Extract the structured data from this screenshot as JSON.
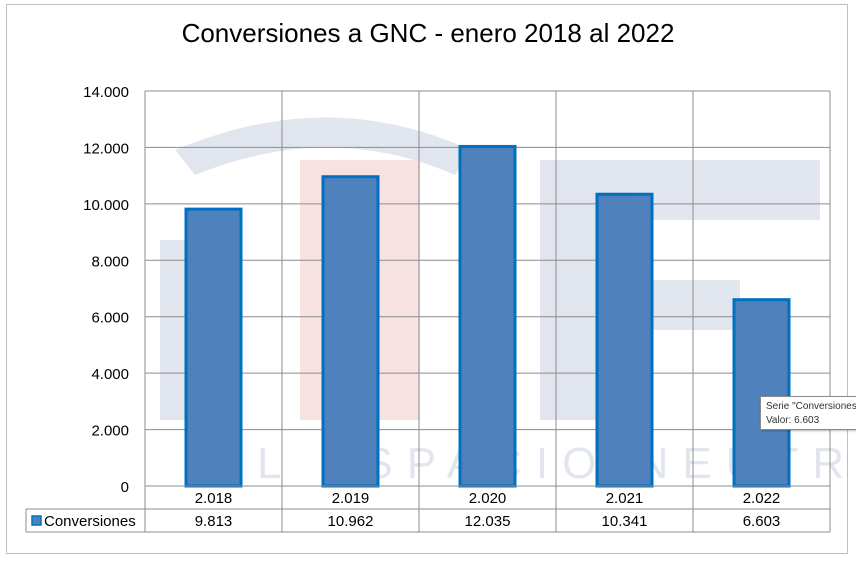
{
  "chart_data": {
    "type": "bar",
    "title": "Conversiones a GNC - enero 2018 al 2022",
    "categories": [
      "2.018",
      "2.019",
      "2.020",
      "2.021",
      "2.022"
    ],
    "series": [
      {
        "name": "Conversiones",
        "values": [
          9813,
          10962,
          12035,
          10341,
          6603
        ],
        "value_labels": [
          "9.813",
          "10.962",
          "12.035",
          "10.341",
          "6.603"
        ]
      }
    ],
    "yticks": [
      "0",
      "2.000",
      "4.000",
      "6.000",
      "8.000",
      "10.000",
      "12.000",
      "14.000"
    ],
    "ylim": [
      0,
      14000
    ],
    "grid": true,
    "data_table": true,
    "bar_color": "#4f81bd",
    "bar_border": "#0070c0"
  },
  "tooltip": {
    "line1": "Serie \"Conversiones\"",
    "line2": "Valor:  6.603"
  },
  "watermark": {
    "text": "EL ESPACIO NEUTRO",
    "colors": [
      "#1f3f7f",
      "#cc1f1f"
    ]
  }
}
